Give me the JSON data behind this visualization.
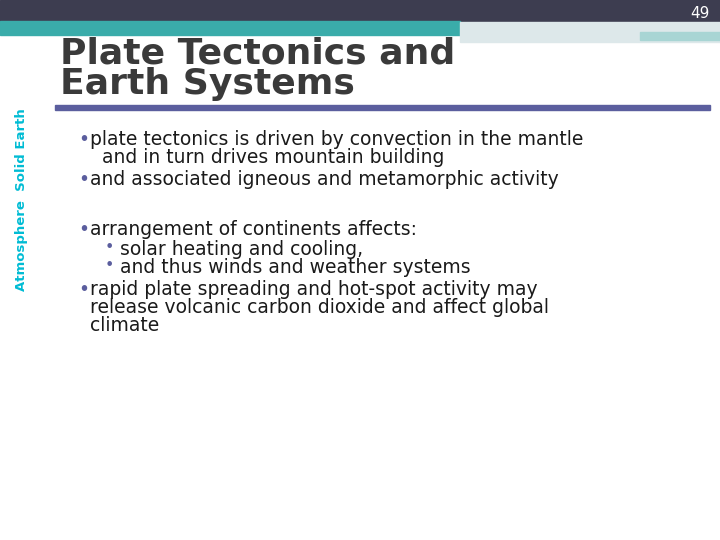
{
  "slide_number": "49",
  "title_line1": "Plate Tectonics and",
  "title_line2": "Earth Systems",
  "title_color": "#3a3a3a",
  "title_fontsize": 26,
  "background_color": "#ffffff",
  "top_bar_dark": "#3d3d4f",
  "top_bar_teal": "#3aacaa",
  "top_bar_light_teal": "#a8d5d4",
  "top_bar_gray": "#c5cdd8",
  "divider_color": "#5b5e9e",
  "slide_num_color": "#ffffff",
  "sidebar_text_top": "Atmosphere",
  "sidebar_text_bot": "Solid Earth",
  "sidebar_color": "#00bcd4",
  "bullet_color": "#5b5e9e",
  "text_color": "#1a1a1a",
  "text_fontsize": 13.5
}
